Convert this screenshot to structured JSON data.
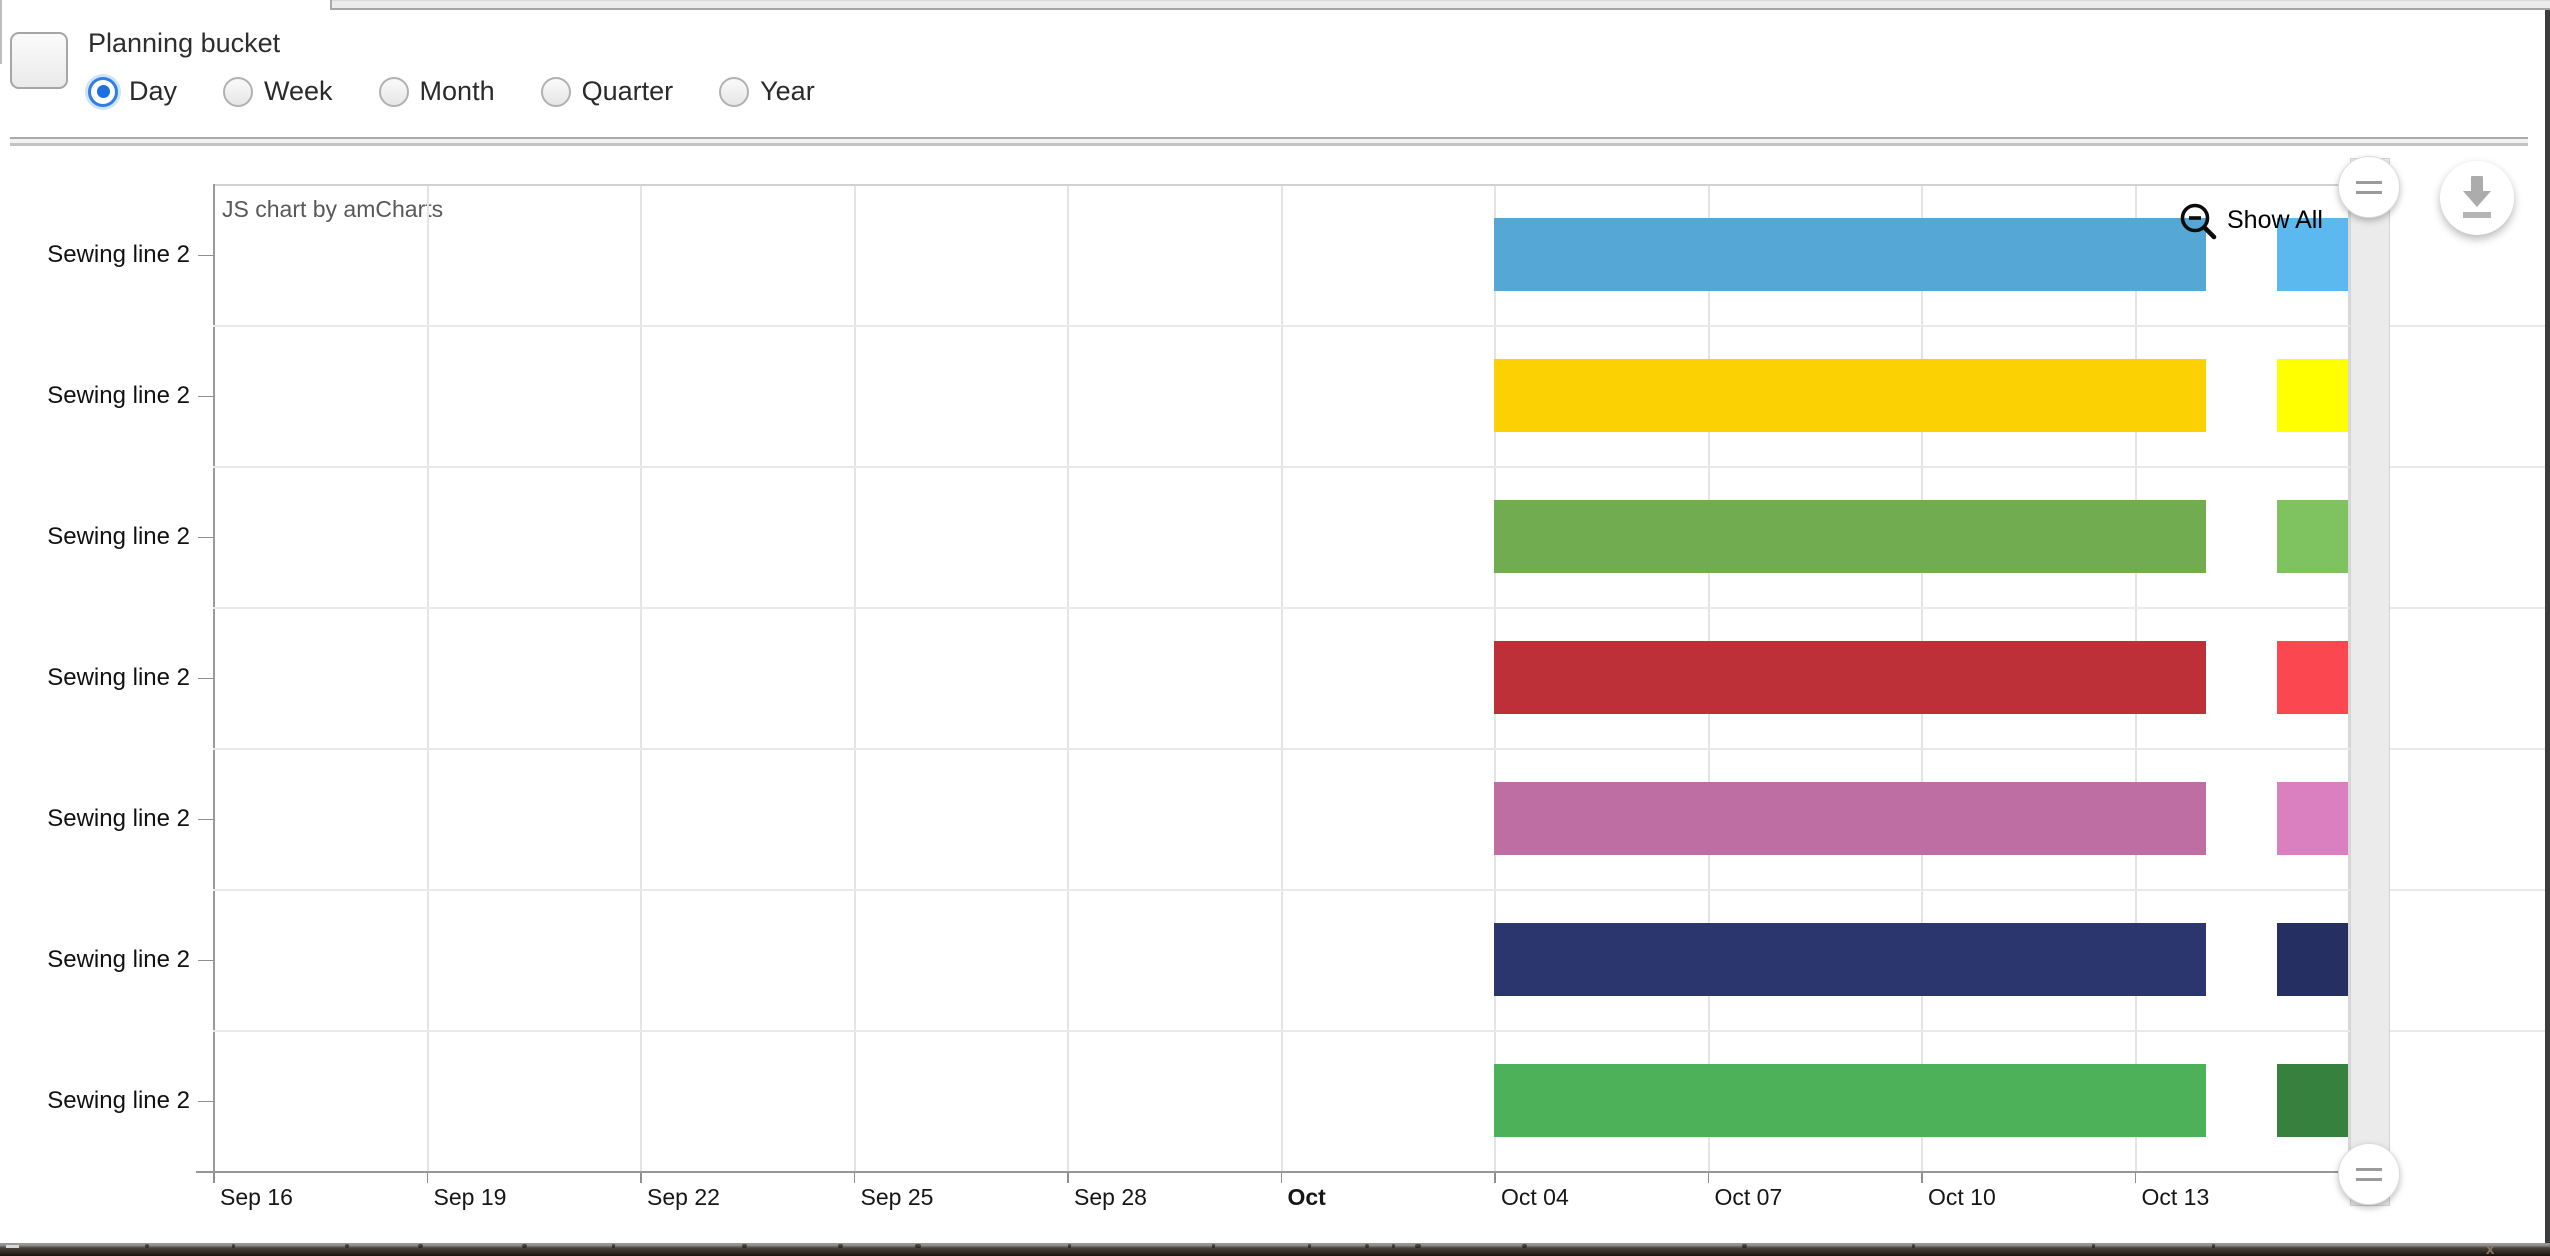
{
  "toolbar": {
    "group_label": "Planning bucket",
    "options": [
      {
        "label": "Day",
        "selected": true
      },
      {
        "label": "Week",
        "selected": false
      },
      {
        "label": "Month",
        "selected": false
      },
      {
        "label": "Quarter",
        "selected": false
      },
      {
        "label": "Year",
        "selected": false
      }
    ]
  },
  "chart": {
    "watermark": "JS chart by amCharts",
    "show_all_label": "Show All",
    "icons": [
      "zoom-out-icon",
      "scrollbar-grip-icon",
      "download-icon"
    ],
    "colors": {
      "grid": "#e4e4e4",
      "axis": "#979797",
      "accent": "#2e7ee4",
      "scroll_track": "#ebebeb"
    }
  },
  "chart_data": {
    "type": "gantt",
    "title": "",
    "categories": [
      "Sewing line 2",
      "Sewing line 2",
      "Sewing line 2",
      "Sewing line 2",
      "Sewing line 2",
      "Sewing line 2",
      "Sewing line 2"
    ],
    "x_axis": {
      "start": "Sep 16",
      "visible_end": "Oct 16",
      "tick_step_days": 3,
      "grid": true
    },
    "x_ticks": [
      {
        "label": "Sep 16",
        "date": "Sep 16",
        "bold": false
      },
      {
        "label": "Sep 19",
        "date": "Sep 19",
        "bold": false
      },
      {
        "label": "Sep 22",
        "date": "Sep 22",
        "bold": false
      },
      {
        "label": "Sep 25",
        "date": "Sep 25",
        "bold": false
      },
      {
        "label": "Sep 28",
        "date": "Sep 28",
        "bold": false
      },
      {
        "label": "Oct",
        "date": "Oct 01",
        "bold": true
      },
      {
        "label": "Oct 04",
        "date": "Oct 04",
        "bold": false
      },
      {
        "label": "Oct 07",
        "date": "Oct 07",
        "bold": false
      },
      {
        "label": "Oct 10",
        "date": "Oct 10",
        "bold": false
      },
      {
        "label": "Oct 13",
        "date": "Oct 13",
        "bold": false
      }
    ],
    "rows": [
      {
        "category": "Sewing line 2",
        "segments": [
          {
            "from": "Oct 04",
            "to": "Oct 14",
            "color": "#55A7D5"
          },
          {
            "from": "Oct 15",
            "to": "Oct 16",
            "color": "#5BB9F0",
            "clipped_at_view_end": true
          }
        ]
      },
      {
        "category": "Sewing line 2",
        "segments": [
          {
            "from": "Oct 04",
            "to": "Oct 14",
            "color": "#FBD104"
          },
          {
            "from": "Oct 15",
            "to": "Oct 16",
            "color": "#FFFF00",
            "clipped_at_view_end": true
          }
        ]
      },
      {
        "category": "Sewing line 2",
        "segments": [
          {
            "from": "Oct 04",
            "to": "Oct 14",
            "color": "#71AC50"
          },
          {
            "from": "Oct 15",
            "to": "Oct 16",
            "color": "#7FC260",
            "clipped_at_view_end": true
          }
        ]
      },
      {
        "category": "Sewing line 2",
        "segments": [
          {
            "from": "Oct 04",
            "to": "Oct 14",
            "color": "#BE3037"
          },
          {
            "from": "Oct 15",
            "to": "Oct 16",
            "color": "#FB4750",
            "clipped_at_view_end": true
          }
        ]
      },
      {
        "category": "Sewing line 2",
        "segments": [
          {
            "from": "Oct 04",
            "to": "Oct 14",
            "color": "#BF6EA4"
          },
          {
            "from": "Oct 15",
            "to": "Oct 16",
            "color": "#DA80C0",
            "clipped_at_view_end": true
          }
        ]
      },
      {
        "category": "Sewing line 2",
        "segments": [
          {
            "from": "Oct 04",
            "to": "Oct 14",
            "color": "#2B366F"
          },
          {
            "from": "Oct 15",
            "to": "Oct 16",
            "color": "#252F62",
            "clipped_at_view_end": true
          }
        ]
      },
      {
        "category": "Sewing line 2",
        "segments": [
          {
            "from": "Oct 04",
            "to": "Oct 14",
            "color": "#4CB158"
          },
          {
            "from": "Oct 15",
            "to": "Oct 16",
            "color": "#37813F",
            "clipped_at_view_end": true
          }
        ]
      }
    ]
  }
}
